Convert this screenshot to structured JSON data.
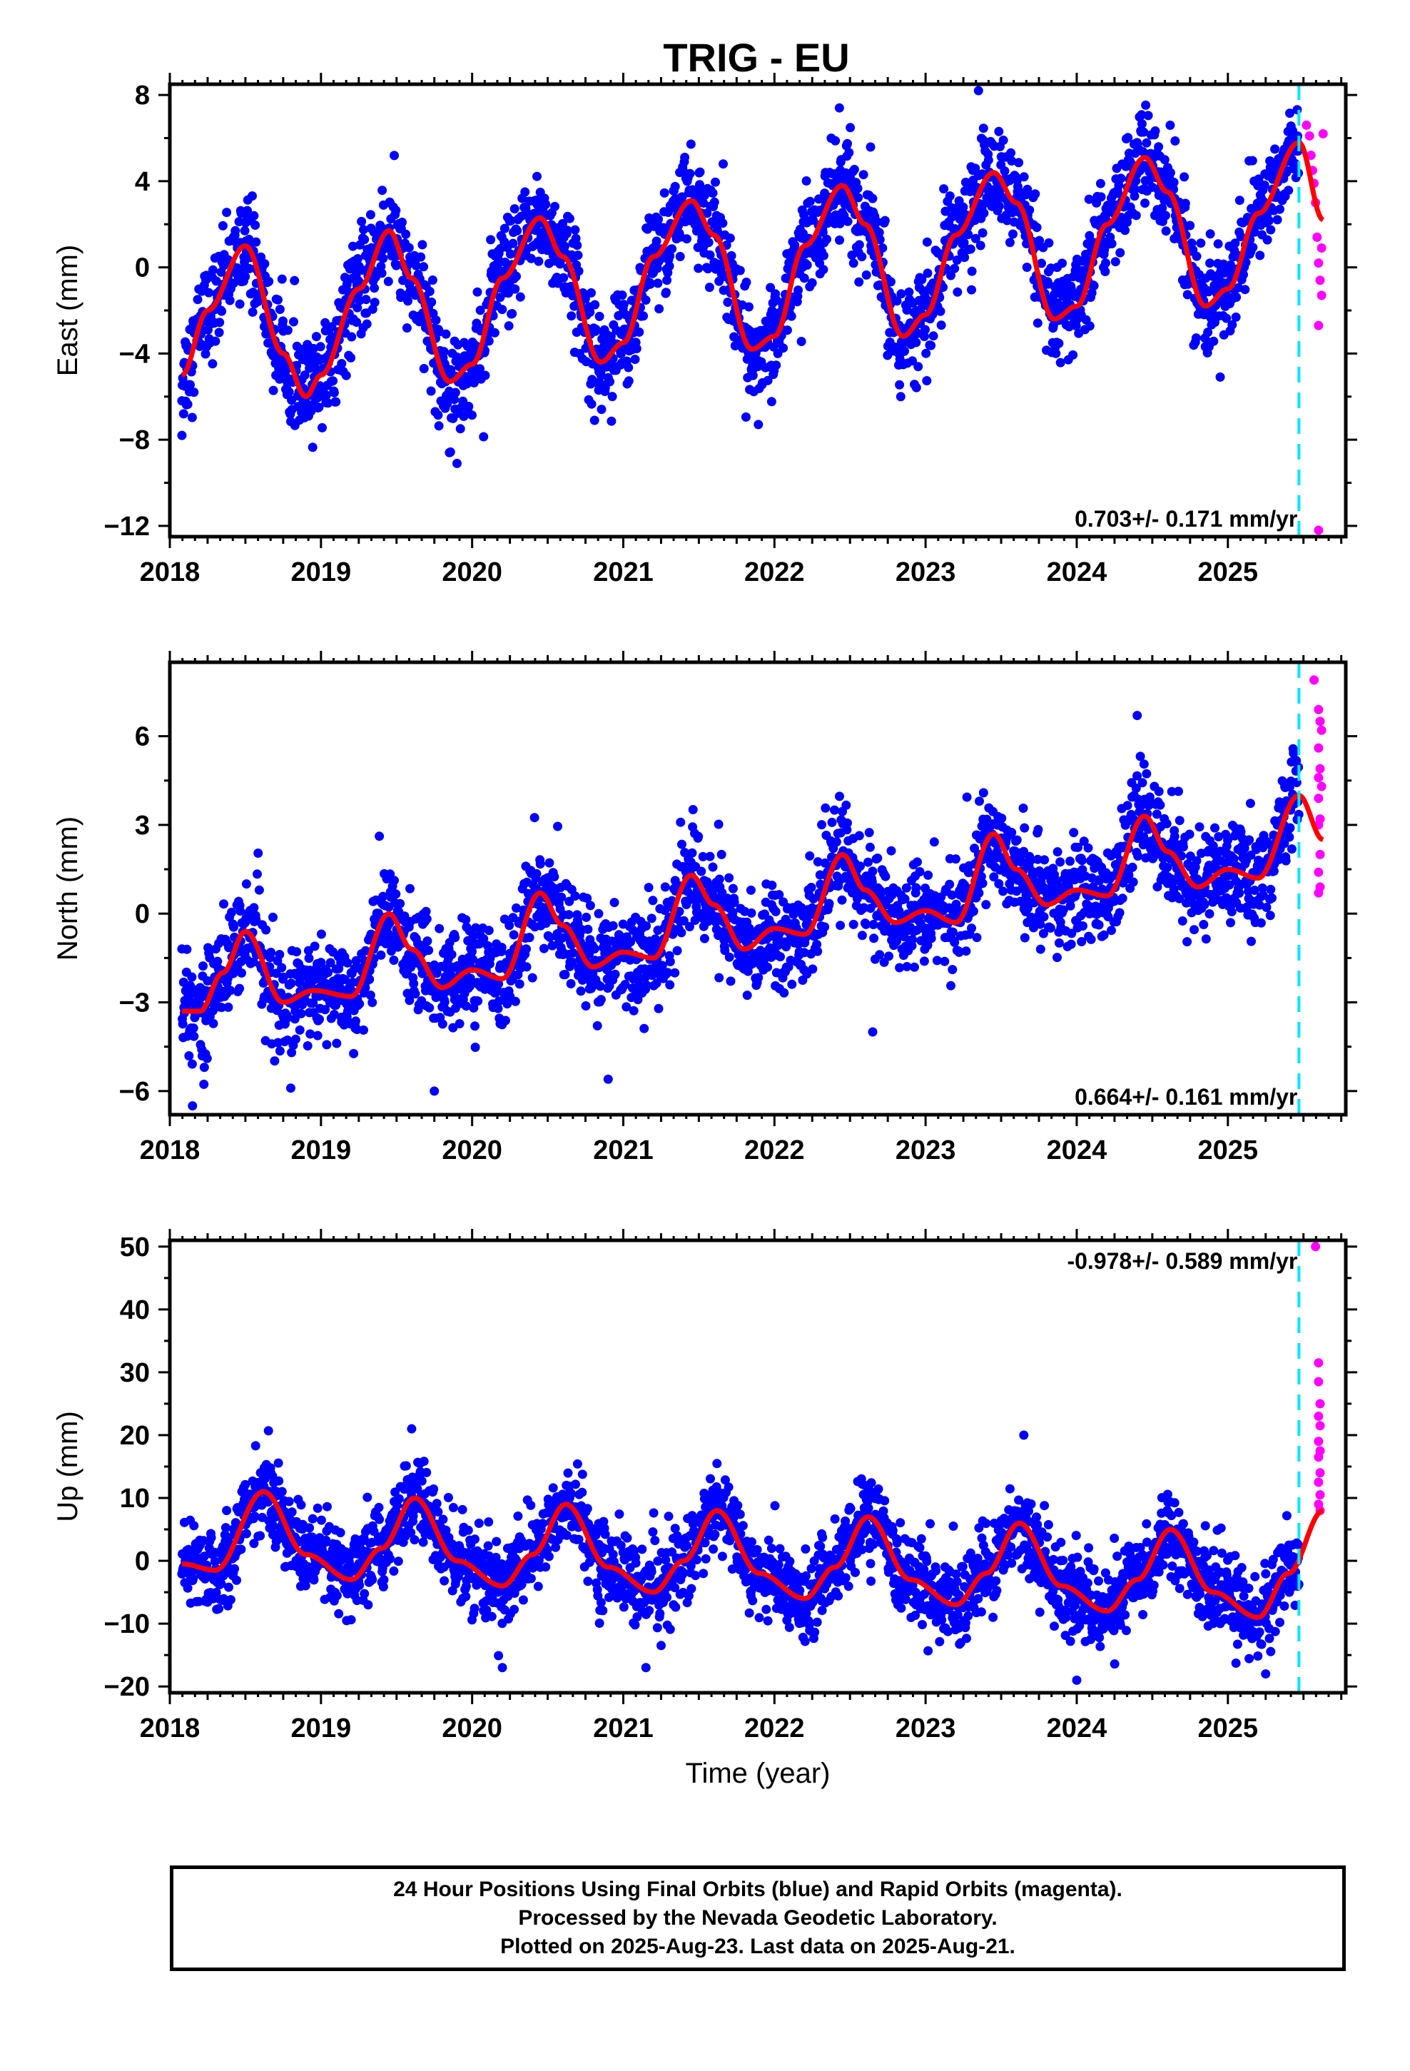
{
  "title": "TRIG - EU",
  "footer": {
    "line1": "24 Hour Positions Using Final Orbits (blue) and Rapid Orbits (magenta).",
    "line2": "Processed by the Nevada Geodetic Laboratory.",
    "line3": "Plotted on 2025-Aug-23. Last data on 2025-Aug-21."
  },
  "colors": {
    "final": "#0000ff",
    "rapid": "#ff00ff",
    "model": "#ff0000",
    "cutoff": "#00e5ff"
  },
  "chart_data": [
    {
      "type": "scatter",
      "component": "East",
      "ylabel": "East (mm)",
      "xlabel": "",
      "xlim": [
        2018.0,
        2025.78
      ],
      "ylim": [
        -12.5,
        8.5
      ],
      "xticks": [
        2018,
        2019,
        2020,
        2021,
        2022,
        2023,
        2024,
        2025
      ],
      "xtick_labels": [
        "2018",
        "2019",
        "2020",
        "2021",
        "2022",
        "2023",
        "2024",
        "2025"
      ],
      "yticks": [
        -12,
        -8,
        -4,
        0,
        4,
        8
      ],
      "ytick_labels": [
        "−12",
        "−8",
        "−4",
        "0",
        "4",
        "8"
      ],
      "rate": "0.703+/- 0.171 mm/yr",
      "rate_position": "bottom-right",
      "data_start": 2018.08,
      "cutoff_year": 2025.47,
      "last_data": 2025.63,
      "model": {
        "x": [
          2018.08,
          2018.25,
          2018.5,
          2018.75,
          2018.9,
          2019.0,
          2019.25,
          2019.45,
          2019.6,
          2019.85,
          2020.0,
          2020.2,
          2020.45,
          2020.6,
          2020.85,
          2021.0,
          2021.2,
          2021.45,
          2021.6,
          2021.85,
          2022.0,
          2022.2,
          2022.45,
          2022.6,
          2022.85,
          2023.0,
          2023.2,
          2023.45,
          2023.6,
          2023.85,
          2024.0,
          2024.2,
          2024.45,
          2024.6,
          2024.85,
          2025.0,
          2025.2,
          2025.47,
          2025.63
        ],
        "y": [
          -5.0,
          -2.0,
          1.0,
          -4.0,
          -6.0,
          -5.0,
          -1.0,
          1.7,
          -0.5,
          -5.3,
          -4.5,
          -0.5,
          2.3,
          0.5,
          -4.4,
          -3.5,
          0.5,
          3.1,
          1.5,
          -3.8,
          -3.2,
          1.0,
          3.8,
          2.0,
          -3.2,
          -2.2,
          1.5,
          4.4,
          3.0,
          -2.4,
          -1.8,
          2.0,
          5.1,
          3.5,
          -1.8,
          -1.0,
          2.5,
          5.8,
          2.2
        ]
      },
      "scatter_sd": 1.15,
      "outliers_final": [
        [
          2018.08,
          -7.8
        ],
        [
          2019.9,
          -9.1
        ],
        [
          2023.35,
          8.2
        ],
        [
          2022.43,
          7.4
        ],
        [
          2019.85,
          -8.6
        ]
      ],
      "rapid_points": [
        [
          2025.52,
          6.6
        ],
        [
          2025.54,
          6.1
        ],
        [
          2025.55,
          5.2
        ],
        [
          2025.56,
          4.5
        ],
        [
          2025.57,
          3.9
        ],
        [
          2025.58,
          3.0
        ],
        [
          2025.59,
          1.4
        ],
        [
          2025.6,
          0.2
        ],
        [
          2025.61,
          -0.6
        ],
        [
          2025.62,
          -1.3
        ],
        [
          2025.6,
          -2.7
        ],
        [
          2025.6,
          -12.2
        ],
        [
          2025.63,
          6.2
        ],
        [
          2025.62,
          0.9
        ]
      ]
    },
    {
      "type": "scatter",
      "component": "North",
      "ylabel": "North (mm)",
      "xlabel": "",
      "xlim": [
        2018.0,
        2025.78
      ],
      "ylim": [
        -6.8,
        8.5
      ],
      "xticks": [
        2018,
        2019,
        2020,
        2021,
        2022,
        2023,
        2024,
        2025
      ],
      "xtick_labels": [
        "2018",
        "2019",
        "2020",
        "2021",
        "2022",
        "2023",
        "2024",
        "2025"
      ],
      "yticks": [
        -6,
        -3,
        0,
        3,
        6
      ],
      "ytick_labels": [
        "−6",
        "−3",
        "0",
        "3",
        "6"
      ],
      "rate": "0.664+/- 0.161 mm/yr",
      "rate_position": "bottom-right",
      "data_start": 2018.08,
      "cutoff_year": 2025.47,
      "last_data": 2025.63,
      "model": {
        "x": [
          2018.08,
          2018.2,
          2018.35,
          2018.5,
          2018.75,
          2018.95,
          2019.2,
          2019.45,
          2019.6,
          2019.8,
          2020.0,
          2020.2,
          2020.45,
          2020.6,
          2020.8,
          2021.0,
          2021.2,
          2021.45,
          2021.6,
          2021.8,
          2022.0,
          2022.2,
          2022.45,
          2022.6,
          2022.8,
          2023.0,
          2023.2,
          2023.45,
          2023.6,
          2023.8,
          2024.0,
          2024.2,
          2024.45,
          2024.6,
          2024.8,
          2025.0,
          2025.2,
          2025.47,
          2025.63
        ],
        "y": [
          -3.3,
          -3.3,
          -2.0,
          -0.6,
          -3.0,
          -2.6,
          -2.8,
          0.0,
          -1.2,
          -2.5,
          -1.9,
          -2.2,
          0.7,
          -0.4,
          -1.8,
          -1.3,
          -1.5,
          1.3,
          0.3,
          -1.2,
          -0.5,
          -0.7,
          2.0,
          0.8,
          -0.3,
          0.1,
          -0.3,
          2.7,
          1.5,
          0.3,
          0.8,
          0.6,
          3.3,
          2.1,
          0.9,
          1.5,
          1.2,
          4.0,
          2.5
        ]
      },
      "scatter_sd": 0.85,
      "outliers_final": [
        [
          2024.4,
          6.7
        ],
        [
          2018.8,
          -5.9
        ],
        [
          2019.75,
          -6.0
        ],
        [
          2020.9,
          -5.6
        ],
        [
          2018.15,
          -6.5
        ],
        [
          2022.65,
          -4.0
        ]
      ],
      "rapid_points": [
        [
          2025.57,
          7.9
        ],
        [
          2025.6,
          6.9
        ],
        [
          2025.61,
          6.5
        ],
        [
          2025.62,
          6.2
        ],
        [
          2025.6,
          5.6
        ],
        [
          2025.61,
          4.9
        ],
        [
          2025.6,
          4.6
        ],
        [
          2025.62,
          4.3
        ],
        [
          2025.6,
          3.9
        ],
        [
          2025.61,
          3.2
        ],
        [
          2025.6,
          3.0
        ],
        [
          2025.61,
          2.0
        ],
        [
          2025.6,
          1.4
        ],
        [
          2025.61,
          0.9
        ],
        [
          2025.6,
          0.7
        ]
      ]
    },
    {
      "type": "scatter",
      "component": "Up",
      "ylabel": "Up (mm)",
      "xlabel": "Time (year)",
      "xlim": [
        2018.0,
        2025.78
      ],
      "ylim": [
        -21,
        51
      ],
      "xticks": [
        2018,
        2019,
        2020,
        2021,
        2022,
        2023,
        2024,
        2025
      ],
      "xtick_labels": [
        "2018",
        "2019",
        "2020",
        "2021",
        "2022",
        "2023",
        "2024",
        "2025"
      ],
      "yticks": [
        -20,
        -10,
        0,
        10,
        20,
        30,
        40,
        50
      ],
      "ytick_labels": [
        "−20",
        "−10",
        "0",
        "10",
        "20",
        "30",
        "40",
        "50"
      ],
      "rate": "-0.978+/- 0.589 mm/yr",
      "rate_position": "top-right",
      "data_start": 2018.08,
      "cutoff_year": 2025.47,
      "last_data": 2025.63,
      "model": {
        "x": [
          2018.08,
          2018.3,
          2018.62,
          2018.9,
          2019.2,
          2019.4,
          2019.62,
          2019.9,
          2020.2,
          2020.4,
          2020.62,
          2020.9,
          2021.2,
          2021.4,
          2021.62,
          2021.9,
          2022.2,
          2022.4,
          2022.62,
          2022.9,
          2023.2,
          2023.4,
          2023.62,
          2023.9,
          2024.2,
          2024.4,
          2024.62,
          2024.9,
          2025.2,
          2025.4,
          2025.63
        ],
        "y": [
          -0.5,
          -1.5,
          11.0,
          1.0,
          -3.0,
          2.0,
          10.0,
          0.0,
          -4.0,
          1.0,
          9.0,
          -1.0,
          -5.0,
          0.0,
          8.0,
          -2.0,
          -6.0,
          -1.0,
          7.0,
          -3.0,
          -7.0,
          -2.0,
          6.0,
          -4.0,
          -8.0,
          -3.0,
          5.0,
          -5.0,
          -9.0,
          -2.0,
          8.0
        ]
      },
      "scatter_sd": 3.3,
      "outliers_final": [
        [
          2019.6,
          21.0
        ],
        [
          2020.2,
          -17.0
        ],
        [
          2021.15,
          -17.0
        ],
        [
          2023.65,
          20.0
        ],
        [
          2024.0,
          -19.0
        ],
        [
          2025.25,
          -18.0
        ]
      ],
      "rapid_points": [
        [
          2025.58,
          50.0
        ],
        [
          2025.6,
          31.5
        ],
        [
          2025.6,
          28.5
        ],
        [
          2025.61,
          25.0
        ],
        [
          2025.6,
          23.0
        ],
        [
          2025.61,
          21.5
        ],
        [
          2025.6,
          19.0
        ],
        [
          2025.61,
          17.5
        ],
        [
          2025.6,
          16.5
        ],
        [
          2025.61,
          14.0
        ],
        [
          2025.6,
          12.5
        ],
        [
          2025.61,
          10.5
        ],
        [
          2025.6,
          9.0
        ],
        [
          2025.61,
          8.0
        ]
      ]
    }
  ]
}
